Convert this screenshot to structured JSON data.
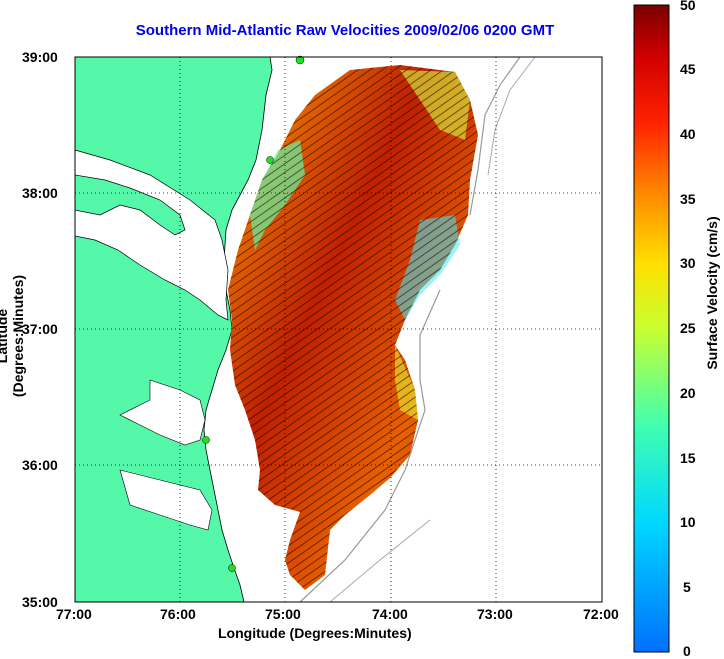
{
  "title": "Southern Mid-Atlantic Raw Velocities 2009/02/06 0200 GMT",
  "xlabel": "Longitude (Degrees:Minutes)",
  "ylabel": "Latitude (Degrees:Minutes)",
  "xticks": [
    "77:00",
    "76:00",
    "75:00",
    "74:00",
    "73:00",
    "72:00"
  ],
  "yticks": [
    "39:00",
    "38:00",
    "37:00",
    "36:00",
    "35:00"
  ],
  "colorbar": {
    "label": "Surface Velocity (cm/s)",
    "ticks": [
      "50",
      "45",
      "40",
      "35",
      "30",
      "25",
      "20",
      "15",
      "10",
      "5",
      "0"
    ],
    "range": [
      0,
      50
    ],
    "units": "cm/s"
  },
  "colors": {
    "land": "#55f7a8",
    "grid": "#000000",
    "title": "#0000ee"
  },
  "map": {
    "lon_range": [
      "77:00",
      "72:00"
    ],
    "lat_range": [
      "35:00",
      "39:00"
    ]
  }
}
